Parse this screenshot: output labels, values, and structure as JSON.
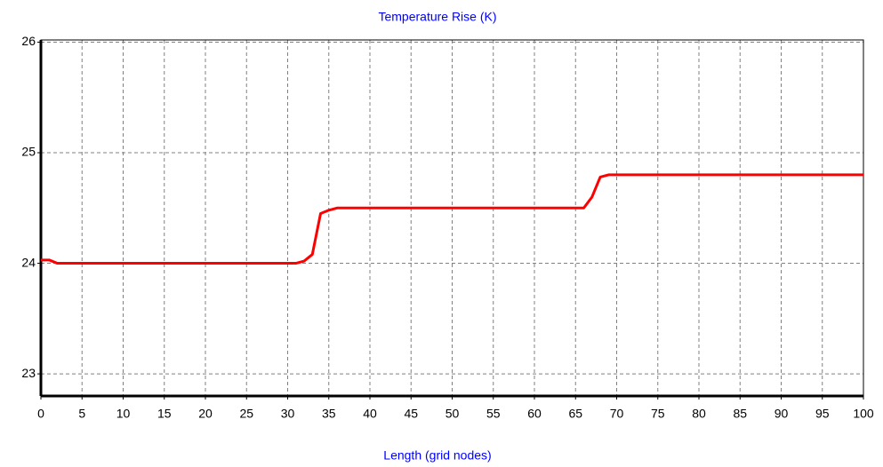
{
  "chart_data": {
    "type": "line",
    "title": "Temperature Rise (K)",
    "x_label": "Length (grid nodes)",
    "x": [
      0,
      1,
      2,
      31,
      32,
      33,
      34,
      35,
      36,
      66,
      67,
      68,
      69,
      100
    ],
    "series": [
      {
        "name": "Temperature Rise",
        "color": "#ff0000",
        "values": [
          24.03,
          24.03,
          24.0,
          24.0,
          24.02,
          24.08,
          24.45,
          24.48,
          24.5,
          24.5,
          24.6,
          24.78,
          24.8,
          24.8
        ]
      }
    ],
    "xlim": [
      0,
      100
    ],
    "xticks": [
      0,
      5,
      10,
      15,
      20,
      25,
      30,
      35,
      40,
      45,
      50,
      55,
      60,
      65,
      70,
      75,
      80,
      85,
      90,
      95,
      100
    ],
    "ylim": [
      22.8,
      26.02
    ],
    "yticks": [
      23,
      24,
      25,
      26
    ],
    "grid": true
  }
}
